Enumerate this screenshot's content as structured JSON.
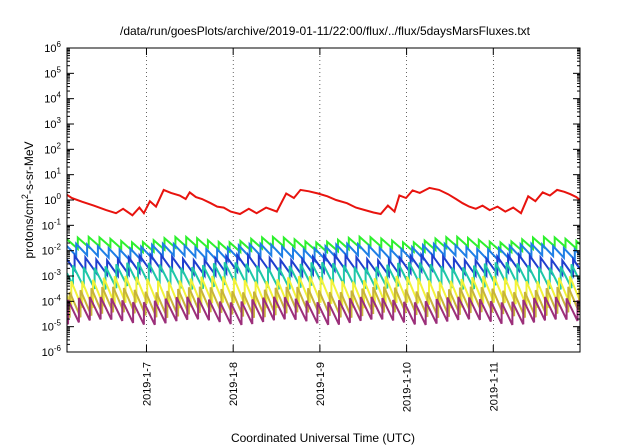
{
  "chart_data": {
    "type": "line",
    "title": "/data/run/goesPlots/archive/2019-01-11/22:00/flux/../flux/5daysMarsFluxes.txt",
    "xlabel": "Coordinated Universal Time (UTC)",
    "ylabel": "protons/cm²-s-sr-MeV",
    "ylabel_parts": [
      "protons/cm",
      "2",
      "-s-sr-MeV"
    ],
    "yscale": "log",
    "xlim": [
      "2019-01-06T02:00",
      "2019-01-12T00:00"
    ],
    "ylim_exponent": [
      -6,
      6
    ],
    "y_tick_exponents": [
      -6,
      -5,
      -4,
      -3,
      -2,
      -1,
      0,
      1,
      2,
      3,
      4,
      5,
      6
    ],
    "x_ticks": [
      {
        "date": "2019-01-07",
        "label": "2019-1-7"
      },
      {
        "date": "2019-01-08",
        "label": "2019-1-8"
      },
      {
        "date": "2019-01-09",
        "label": "2019-1-9"
      },
      {
        "date": "2019-01-10",
        "label": "2019-1-10"
      },
      {
        "date": "2019-01-11",
        "label": "2019-1-11"
      }
    ],
    "grid": "vertical dotted at x ticks",
    "legend": "none",
    "series": [
      {
        "color": "#e8130e",
        "x": [
          "2019-01-06T02:00",
          "2019-01-06T03:18",
          "2019-01-06T06:14",
          "2019-01-06T09:23",
          "2019-01-06T12:50",
          "2019-01-06T15:34",
          "2019-01-06T17:31",
          "2019-01-06T20:07",
          "2019-01-06T22:03",
          "2019-01-06T23:17",
          "2019-01-07T00:56",
          "2019-01-07T02:38",
          "2019-01-07T04:46",
          "2019-01-07T06:47",
          "2019-01-07T09:11",
          "2019-01-07T10:52",
          "2019-01-07T11:58",
          "2019-01-07T13:40",
          "2019-01-07T15:22",
          "2019-01-07T17:46",
          "2019-01-07T19:34",
          "2019-01-07T21:22",
          "2019-01-07T23:18",
          "2019-01-08T01:53",
          "2019-01-08T04:20",
          "2019-01-08T06:29",
          "2019-01-08T09:07",
          "2019-01-08T12:04",
          "2019-01-08T14:41",
          "2019-01-08T16:48",
          "2019-01-08T18:38",
          "2019-01-08T20:58",
          "2019-01-08T23:31",
          "2019-01-09T02:04",
          "2019-01-09T04:30",
          "2019-01-09T07:30",
          "2019-01-09T10:00",
          "2019-01-09T12:30",
          "2019-01-09T14:50",
          "2019-01-09T16:50",
          "2019-01-09T18:50",
          "2019-01-09T20:40",
          "2019-01-09T22:00",
          "2019-01-09T23:50",
          "2019-01-10T01:40",
          "2019-01-10T03:40",
          "2019-01-10T06:20",
          "2019-01-10T09:00",
          "2019-01-10T11:30",
          "2019-01-10T13:40",
          "2019-01-10T15:30",
          "2019-01-10T17:20",
          "2019-01-10T19:10",
          "2019-01-10T21:00",
          "2019-01-10T23:00",
          "2019-01-11T01:10",
          "2019-01-11T03:20",
          "2019-01-11T05:30",
          "2019-01-11T07:40",
          "2019-01-11T09:40",
          "2019-01-11T11:40",
          "2019-01-11T13:40",
          "2019-01-11T15:40",
          "2019-01-11T17:40",
          "2019-01-11T19:40",
          "2019-01-11T21:20",
          "2019-01-11T23:00",
          "2019-01-12T00:00"
        ],
        "y": [
          1.6,
          1.2,
          0.85,
          0.6,
          0.4,
          0.3,
          0.45,
          0.25,
          0.5,
          0.3,
          0.9,
          0.55,
          2.5,
          1.9,
          1.5,
          1.1,
          2.0,
          1.3,
          1.1,
          0.75,
          0.55,
          0.5,
          0.35,
          0.28,
          0.45,
          0.3,
          0.5,
          0.35,
          1.8,
          1.2,
          2.5,
          2.2,
          1.8,
          1.4,
          1.0,
          0.75,
          0.5,
          0.4,
          0.32,
          0.28,
          0.6,
          0.35,
          1.5,
          1.2,
          2.4,
          1.9,
          3.0,
          2.5,
          1.7,
          1.1,
          0.75,
          0.55,
          0.45,
          0.6,
          0.4,
          0.55,
          0.35,
          0.5,
          0.3,
          1.4,
          0.9,
          2.0,
          1.5,
          2.5,
          2.1,
          1.7,
          1.3,
          1.0
        ]
      },
      {
        "color": "#2ef02e",
        "base": 0.028,
        "ratio": 0.42,
        "phase": 0.0
      },
      {
        "color": "#1f7fe6",
        "base": 0.015,
        "ratio": 0.35,
        "phase": 0.15
      },
      {
        "color": "#1f3fcf",
        "base": 0.0055,
        "ratio": 0.25,
        "phase": 0.3
      },
      {
        "color": "#1fc8a8",
        "base": 0.0028,
        "ratio": 0.14,
        "phase": 0.45
      },
      {
        "color": "#f2f23a",
        "base": 0.0008,
        "ratio": 0.09,
        "phase": 0.6
      },
      {
        "color": "#c8b43a",
        "base": 0.0003,
        "ratio": 0.1,
        "phase": 0.75
      },
      {
        "color": "#9c2f7a",
        "base": 0.00012,
        "ratio": 0.13,
        "phase": 0.9
      }
    ],
    "sawtooth_period_hours": 3.0
  }
}
